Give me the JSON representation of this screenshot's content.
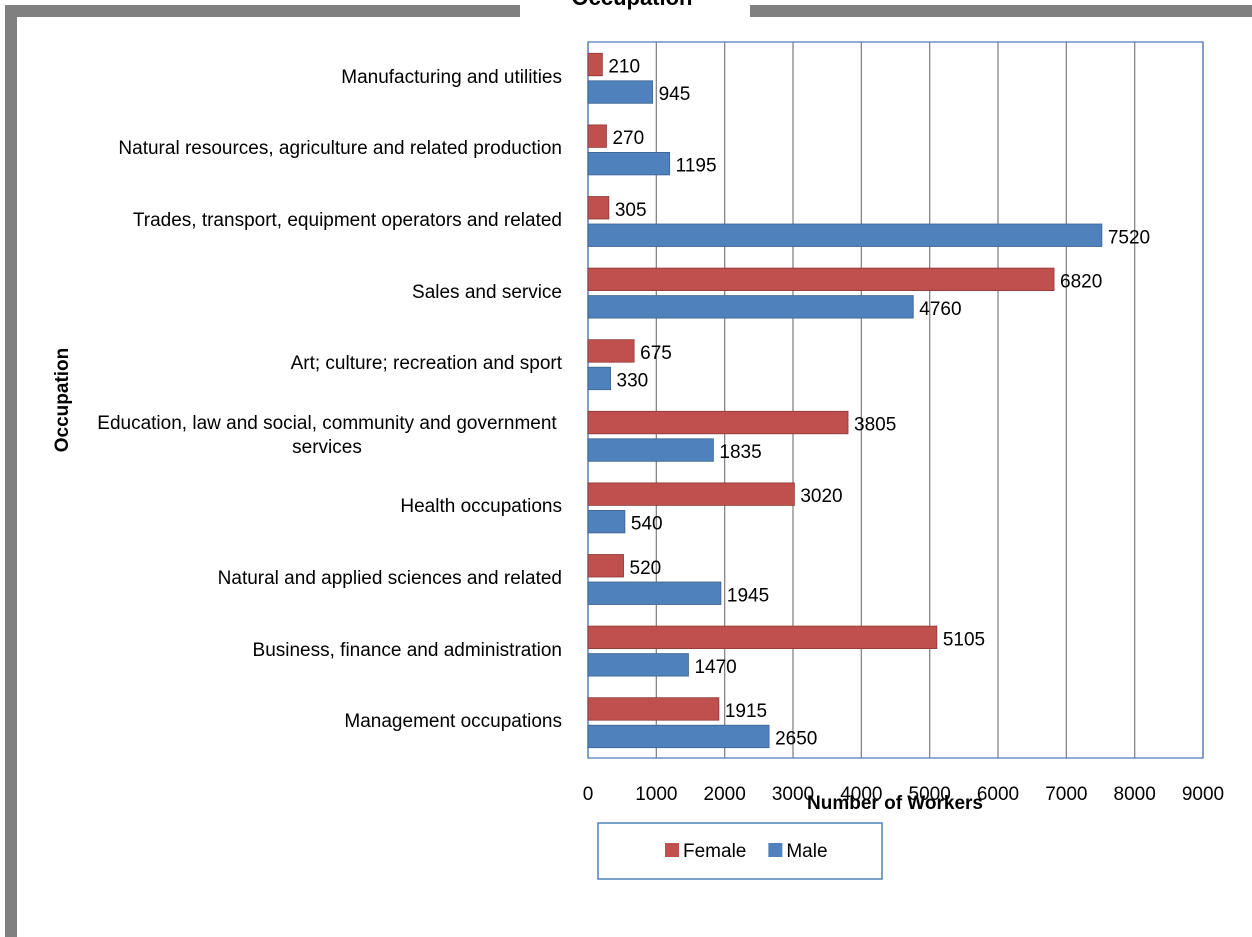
{
  "chart_data": {
    "type": "hbar",
    "title": "Occupation",
    "x_label": "Number of Workers",
    "y_label": "Occupation",
    "categories": [
      "Manufacturing and utilities",
      "Natural resources, agriculture and related production",
      "Trades, transport, equipment operators and related",
      "Sales and service",
      "Art; culture; recreation and sport",
      "Education, law and social, community and government services",
      "Health occupations",
      "Natural and applied sciences and related",
      "Business, finance and administration",
      "Management occupations"
    ],
    "series": [
      {
        "name": "Female",
        "color": "#c0504d",
        "values": [
          210,
          270,
          305,
          6820,
          675,
          3805,
          3020,
          520,
          5105,
          1915
        ]
      },
      {
        "name": "Male",
        "color": "#4f81bd",
        "values": [
          945,
          1195,
          7520,
          4760,
          330,
          1835,
          540,
          1945,
          1470,
          2650
        ]
      }
    ],
    "xlim": [
      0,
      9000
    ],
    "xticks": [
      0,
      1000,
      2000,
      3000,
      4000,
      5000,
      6000,
      7000,
      8000,
      9000
    ],
    "grid": true,
    "legend": "bottom"
  }
}
